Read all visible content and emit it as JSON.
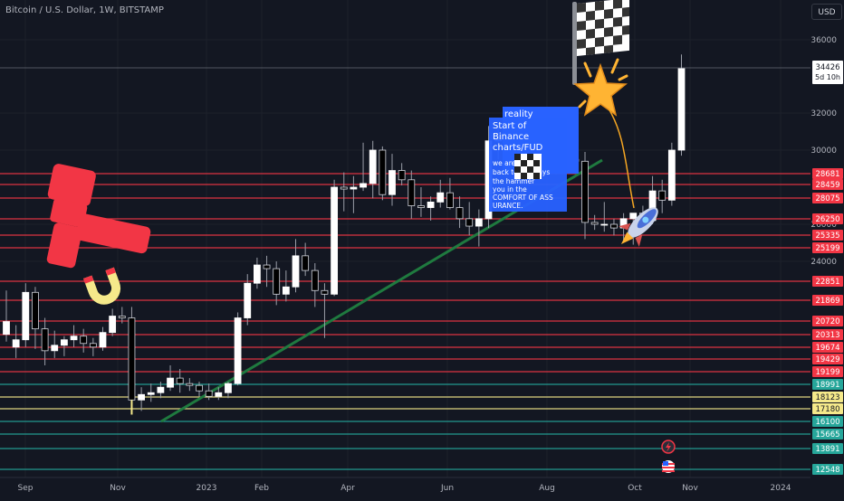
{
  "header": {
    "symbol": "Bitcoin / U.S. Dollar, 1W, BITSTAMP",
    "currency": "USD"
  },
  "colors": {
    "background": "#131722",
    "up": "#ffffff",
    "down": "#000000",
    "wick": "#9a9ea8",
    "red_level": "#f23645",
    "green_level": "#26a69a",
    "yellow_level": "#f5e98a",
    "trendline": "#1f7a3f",
    "note": "#2962ff",
    "star": "#ffb433",
    "rocket": "#4a6fd8"
  },
  "chart_data": {
    "type": "candlestick",
    "x_tick_labels": [
      "Sep",
      "Nov",
      "2023",
      "Feb",
      "Apr",
      "Jun",
      "Aug",
      "Oct",
      "Nov",
      "2024"
    ],
    "y_tick_labels": [
      24000,
      26000,
      30000,
      32000,
      36000
    ],
    "price_labels": [
      {
        "value": "34426",
        "sub": "5d 10h",
        "style": "current"
      },
      {
        "value": "28681",
        "style": "red"
      },
      {
        "value": "28459",
        "style": "red"
      },
      {
        "value": "28075",
        "style": "red"
      },
      {
        "value": "26250",
        "style": "red"
      },
      {
        "value": "25335",
        "style": "red"
      },
      {
        "value": "25199",
        "style": "red"
      },
      {
        "value": "22851",
        "style": "red"
      },
      {
        "value": "21869",
        "style": "red"
      },
      {
        "value": "20720",
        "style": "red"
      },
      {
        "value": "20313",
        "style": "red"
      },
      {
        "value": "19674",
        "style": "red"
      },
      {
        "value": "19429",
        "style": "red"
      },
      {
        "value": "19199",
        "style": "red"
      },
      {
        "value": "18991",
        "style": "green"
      },
      {
        "value": "18123",
        "style": "yellow"
      },
      {
        "value": "17180",
        "style": "yellow"
      },
      {
        "value": "16100",
        "style": "green"
      },
      {
        "value": "15665",
        "style": "green"
      },
      {
        "value": "13891",
        "style": "green"
      },
      {
        "value": "12548",
        "style": "green"
      }
    ],
    "candles": [
      {
        "o": 20000,
        "h": 22400,
        "l": 19600,
        "c": 20700
      },
      {
        "o": 19300,
        "h": 20500,
        "l": 18700,
        "c": 19700
      },
      {
        "o": 19700,
        "h": 22800,
        "l": 19300,
        "c": 22300
      },
      {
        "o": 22300,
        "h": 22600,
        "l": 19200,
        "c": 20300
      },
      {
        "o": 20300,
        "h": 20900,
        "l": 18300,
        "c": 19100
      },
      {
        "o": 19100,
        "h": 20200,
        "l": 18700,
        "c": 19400
      },
      {
        "o": 19400,
        "h": 19900,
        "l": 18800,
        "c": 19700
      },
      {
        "o": 19700,
        "h": 20500,
        "l": 19300,
        "c": 19900
      },
      {
        "o": 19900,
        "h": 20300,
        "l": 19000,
        "c": 19500
      },
      {
        "o": 19500,
        "h": 19800,
        "l": 18800,
        "c": 19300
      },
      {
        "o": 19300,
        "h": 20400,
        "l": 19100,
        "c": 20100
      },
      {
        "o": 20100,
        "h": 21400,
        "l": 19900,
        "c": 21000
      },
      {
        "o": 21000,
        "h": 21500,
        "l": 20600,
        "c": 20900
      },
      {
        "o": 20900,
        "h": 21500,
        "l": 15600,
        "c": 16400
      },
      {
        "o": 16400,
        "h": 17100,
        "l": 15800,
        "c": 16700
      },
      {
        "o": 16700,
        "h": 17300,
        "l": 16300,
        "c": 16800
      },
      {
        "o": 16800,
        "h": 17400,
        "l": 16500,
        "c": 17100
      },
      {
        "o": 17100,
        "h": 18300,
        "l": 16900,
        "c": 17600
      },
      {
        "o": 17600,
        "h": 18100,
        "l": 16800,
        "c": 17300
      },
      {
        "o": 17300,
        "h": 17600,
        "l": 16900,
        "c": 17200
      },
      {
        "o": 17200,
        "h": 17400,
        "l": 16600,
        "c": 16900
      },
      {
        "o": 16900,
        "h": 17300,
        "l": 16400,
        "c": 16600
      },
      {
        "o": 16600,
        "h": 17100,
        "l": 16400,
        "c": 16800
      },
      {
        "o": 16800,
        "h": 17400,
        "l": 16500,
        "c": 17300
      },
      {
        "o": 17300,
        "h": 21200,
        "l": 17200,
        "c": 20900
      },
      {
        "o": 20900,
        "h": 23300,
        "l": 20500,
        "c": 22800
      },
      {
        "o": 22800,
        "h": 24200,
        "l": 22500,
        "c": 23800
      },
      {
        "o": 23800,
        "h": 24300,
        "l": 22600,
        "c": 23600
      },
      {
        "o": 23600,
        "h": 24000,
        "l": 21600,
        "c": 22200
      },
      {
        "o": 22200,
        "h": 23500,
        "l": 21800,
        "c": 22600
      },
      {
        "o": 22600,
        "h": 25200,
        "l": 22300,
        "c": 24300
      },
      {
        "o": 24300,
        "h": 25000,
        "l": 23200,
        "c": 23500
      },
      {
        "o": 23500,
        "h": 23900,
        "l": 21500,
        "c": 22400
      },
      {
        "o": 22400,
        "h": 22800,
        "l": 19800,
        "c": 22200
      },
      {
        "o": 22200,
        "h": 28400,
        "l": 22100,
        "c": 28000
      },
      {
        "o": 28000,
        "h": 28800,
        "l": 26700,
        "c": 27900
      },
      {
        "o": 27900,
        "h": 28600,
        "l": 26600,
        "c": 28000
      },
      {
        "o": 28000,
        "h": 30400,
        "l": 27800,
        "c": 28200
      },
      {
        "o": 28200,
        "h": 30500,
        "l": 27400,
        "c": 30000
      },
      {
        "o": 30000,
        "h": 30200,
        "l": 27300,
        "c": 27600
      },
      {
        "o": 27600,
        "h": 29800,
        "l": 27000,
        "c": 28900
      },
      {
        "o": 28900,
        "h": 29300,
        "l": 28100,
        "c": 28400
      },
      {
        "o": 28400,
        "h": 28900,
        "l": 26300,
        "c": 27000
      },
      {
        "o": 27000,
        "h": 28000,
        "l": 26400,
        "c": 26900
      },
      {
        "o": 26900,
        "h": 27500,
        "l": 26200,
        "c": 27200
      },
      {
        "o": 27200,
        "h": 28400,
        "l": 26900,
        "c": 27700
      },
      {
        "o": 27700,
        "h": 28500,
        "l": 26800,
        "c": 26900
      },
      {
        "o": 26900,
        "h": 27500,
        "l": 25800,
        "c": 26300
      },
      {
        "o": 26300,
        "h": 27200,
        "l": 25400,
        "c": 25900
      },
      {
        "o": 25900,
        "h": 26800,
        "l": 24800,
        "c": 26300
      },
      {
        "o": 26300,
        "h": 31300,
        "l": 25800,
        "c": 30500
      },
      {
        "o": 30500,
        "h": 31400,
        "l": 29500,
        "c": 30600
      },
      {
        "o": 30600,
        "h": 31800,
        "l": 29900,
        "c": 30200
      },
      {
        "o": 30200,
        "h": 31200,
        "l": 29700,
        "c": 30600
      },
      {
        "o": 30600,
        "h": 31200,
        "l": 29500,
        "c": 30100
      },
      {
        "o": 30100,
        "h": 30400,
        "l": 29000,
        "c": 29300
      },
      {
        "o": 29300,
        "h": 29800,
        "l": 28800,
        "c": 29100
      },
      {
        "o": 29100,
        "h": 29600,
        "l": 28700,
        "c": 29200
      },
      {
        "o": 29200,
        "h": 30200,
        "l": 28900,
        "c": 29500
      },
      {
        "o": 29500,
        "h": 29900,
        "l": 28900,
        "c": 29400
      },
      {
        "o": 29400,
        "h": 29900,
        "l": 25200,
        "c": 26100
      },
      {
        "o": 26100,
        "h": 26500,
        "l": 25700,
        "c": 26000
      },
      {
        "o": 26000,
        "h": 27200,
        "l": 25600,
        "c": 26000
      },
      {
        "o": 26000,
        "h": 26300,
        "l": 25400,
        "c": 25800
      },
      {
        "o": 25800,
        "h": 26600,
        "l": 25100,
        "c": 26300
      },
      {
        "o": 26300,
        "h": 26500,
        "l": 24900,
        "c": 26600
      },
      {
        "o": 26600,
        "h": 27000,
        "l": 26000,
        "c": 26200
      },
      {
        "o": 26200,
        "h": 28600,
        "l": 26000,
        "c": 27800
      },
      {
        "o": 27800,
        "h": 28400,
        "l": 26600,
        "c": 27300
      },
      {
        "o": 27300,
        "h": 30400,
        "l": 27000,
        "c": 30000
      },
      {
        "o": 30000,
        "h": 35200,
        "l": 29700,
        "c": 34426
      }
    ]
  },
  "annotations": {
    "note_lines": [
      "reality",
      "Start of",
      "Binance",
      "charts/FUD",
      "we are going",
      "back to 32k says",
      "the hammer",
      "you in the",
      "COMFORT OF ASS",
      "URANCE."
    ]
  }
}
